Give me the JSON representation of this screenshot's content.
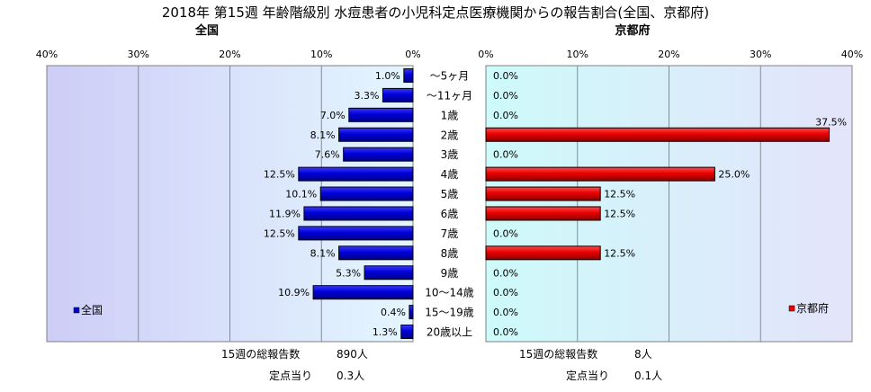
{
  "title": "2018年 第15週 年齢階級別 水痘患者の小児科定点医療機関からの報告割合(全国、京都府)",
  "categories": [
    "～5ヶ月",
    "～11ヶ月",
    "1歳",
    "2歳",
    "3歳",
    "4歳",
    "5歳",
    "6歳",
    "7歳",
    "8歳",
    "9歳",
    "10～14歳",
    "15～19歳",
    "20歳以上"
  ],
  "chart_data": [
    {
      "type": "bar",
      "title": "全国",
      "orientation": "horizontal-reversed",
      "categories": [
        "～5ヶ月",
        "～11ヶ月",
        "1歳",
        "2歳",
        "3歳",
        "4歳",
        "5歳",
        "6歳",
        "7歳",
        "8歳",
        "9歳",
        "10～14歳",
        "15～19歳",
        "20歳以上"
      ],
      "series": [
        {
          "name": "全国",
          "values": [
            1.0,
            3.3,
            7.0,
            8.1,
            7.6,
            12.5,
            10.1,
            11.9,
            12.5,
            8.1,
            5.3,
            10.9,
            0.4,
            1.3
          ]
        }
      ],
      "labels": [
        "1.0%",
        "3.3%",
        "7.0%",
        "8.1%",
        "7.6%",
        "12.5%",
        "10.1%",
        "11.9%",
        "12.5%",
        "8.1%",
        "5.3%",
        "10.9%",
        "0.4%",
        "1.3%"
      ],
      "xlim": [
        0,
        40
      ],
      "ticks": [
        "0%",
        "10%",
        "20%",
        "30%",
        "40%"
      ],
      "grid": true,
      "legend": "bottom-left",
      "color": "#0000cc",
      "summary": {
        "total_label": "15週の総報告数",
        "total_value": "890人",
        "per_label": "定点当り",
        "per_value": "0.3人"
      }
    },
    {
      "type": "bar",
      "title": "京都府",
      "orientation": "horizontal",
      "categories": [
        "～5ヶ月",
        "～11ヶ月",
        "1歳",
        "2歳",
        "3歳",
        "4歳",
        "5歳",
        "6歳",
        "7歳",
        "8歳",
        "9歳",
        "10～14歳",
        "15～19歳",
        "20歳以上"
      ],
      "series": [
        {
          "name": "京都府",
          "values": [
            0.0,
            0.0,
            0.0,
            37.5,
            0.0,
            25.0,
            12.5,
            12.5,
            0.0,
            12.5,
            0.0,
            0.0,
            0.0,
            0.0
          ]
        }
      ],
      "labels": [
        "0.0%",
        "0.0%",
        "0.0%",
        "37.5%",
        "0.0%",
        "25.0%",
        "12.5%",
        "12.5%",
        "0.0%",
        "12.5%",
        "0.0%",
        "0.0%",
        "0.0%",
        "0.0%"
      ],
      "xlim": [
        0,
        40
      ],
      "ticks": [
        "0%",
        "10%",
        "20%",
        "30%",
        "40%"
      ],
      "grid": true,
      "legend": "bottom-right",
      "color": "#ee0000",
      "summary": {
        "total_label": "15週の総報告数",
        "total_value": "8人",
        "per_label": "定点当り",
        "per_value": "0.1人"
      }
    }
  ]
}
